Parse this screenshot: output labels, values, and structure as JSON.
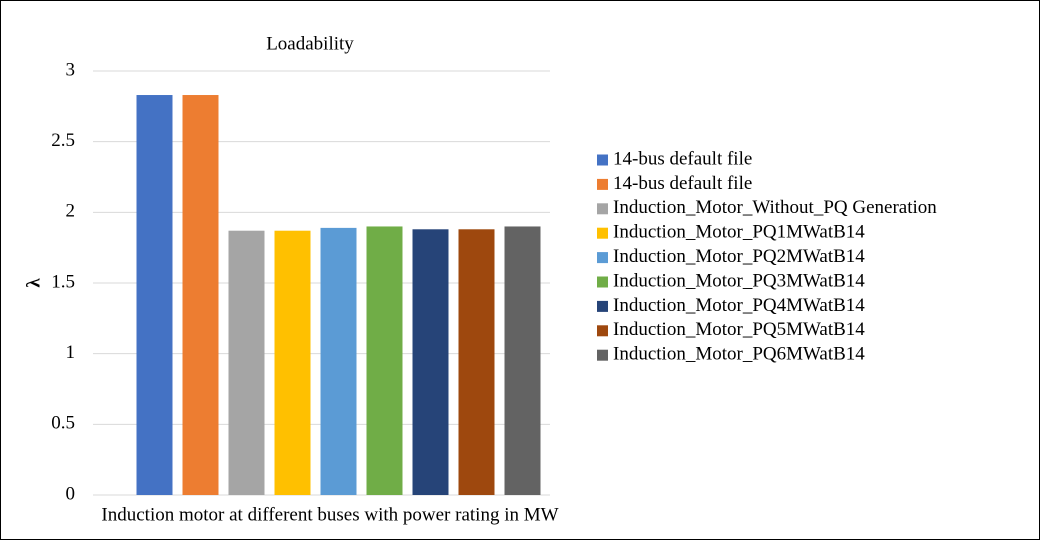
{
  "chart_data": {
    "type": "bar",
    "title": "Loadability",
    "x_label": "Induction motor at different buses with power rating in MW",
    "y_label": "λ",
    "categories": [
      null
    ],
    "series": [
      {
        "name": "14-bus default file",
        "color": "#4472c4",
        "values": [
          2.83
        ]
      },
      {
        "name": "14-bus default file",
        "color": "#ed7d31",
        "values": [
          2.83
        ]
      },
      {
        "name": "Induction_Motor_Without_PQ Generation",
        "color": "#a5a5a5",
        "values": [
          1.87
        ]
      },
      {
        "name": "Induction_Motor_PQ1MWatB14",
        "color": "#ffc000",
        "values": [
          1.87
        ]
      },
      {
        "name": "Induction_Motor_PQ2MWatB14",
        "color": "#5b9bd5",
        "values": [
          1.89
        ]
      },
      {
        "name": "Induction_Motor_PQ3MWatB14",
        "color": "#70ad47",
        "values": [
          1.9
        ]
      },
      {
        "name": "Induction_Motor_PQ4MWatB14",
        "color": "#264478",
        "values": [
          1.88
        ]
      },
      {
        "name": "Induction_Motor_PQ5MWatB14",
        "color": "#9e480e",
        "values": [
          1.88
        ]
      },
      {
        "name": "Induction_Motor_PQ6MWatB14",
        "color": "#636363",
        "values": [
          1.9
        ]
      }
    ],
    "ylim": [
      0,
      3
    ],
    "yticks": [
      0,
      0.5,
      1,
      1.5,
      2,
      2.5,
      3
    ],
    "grid": true,
    "legend": "right"
  }
}
